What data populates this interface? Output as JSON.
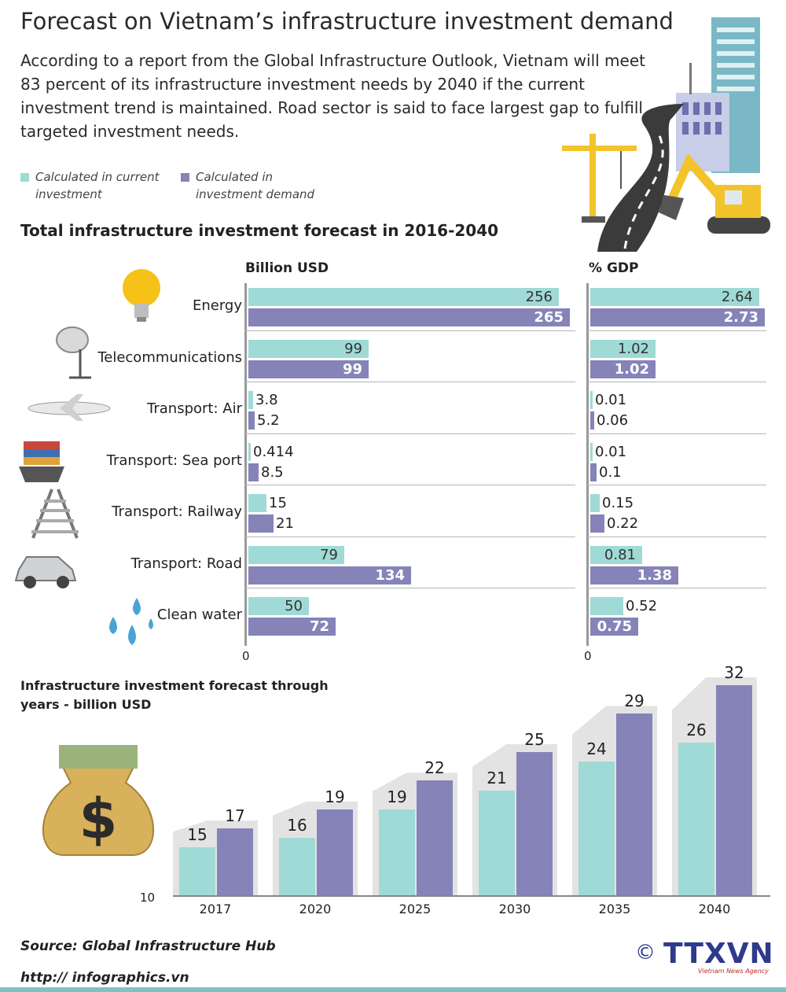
{
  "header": {
    "title": "Forecast on Vietnam’s infrastructure investment demand",
    "intro": "According to a report from the Global Infrastructure Outlook, Vietnam will meet 83 percent of its infrastructure investment needs by 2040 if the current investment trend is maintained. Road sector is said to face largest gap to fulfill targeted investment needs."
  },
  "legend": {
    "current": "Calculated in current investment",
    "demand": "Calculated in investment demand"
  },
  "colors": {
    "current": "#9fdad6",
    "demand": "#8583b8",
    "shadow": "#e3e3e3"
  },
  "section_title": "Total infrastructure investment forecast in 2016-2040",
  "years_title": "Infrastructure investment forecast through years - billion USD",
  "footer": {
    "source": "Source: Global Infrastructure Hub",
    "url": "http:// infographics.vn",
    "logo_c": "©",
    "logo_text": "TTXVN",
    "logo_sub": "Vietnam News Agency"
  },
  "chart_data": [
    {
      "type": "bar",
      "orientation": "horizontal",
      "title": "Billion USD",
      "zero_label": "0",
      "categories": [
        "Energy",
        "Telecommunications",
        "Transport: Air",
        "Transport: Sea port",
        "Transport: Railway",
        "Transport: Road",
        "Clean water"
      ],
      "series": [
        {
          "name": "Calculated in current investment",
          "values": [
            256,
            99,
            3.8,
            0.414,
            15,
            79,
            50
          ],
          "labels": [
            "256",
            "99",
            "3.8",
            "0.414",
            "15",
            "79",
            "50"
          ]
        },
        {
          "name": "Calculated in investment demand",
          "values": [
            265,
            99,
            5.2,
            8.5,
            21,
            134,
            72
          ],
          "labels": [
            "265",
            "99",
            "5.2",
            "8.5",
            "21",
            "134",
            "72"
          ]
        }
      ],
      "xlim": [
        0,
        265
      ]
    },
    {
      "type": "bar",
      "orientation": "horizontal",
      "title": "% GDP",
      "zero_label": "0",
      "categories": [
        "Energy",
        "Telecommunications",
        "Transport: Air",
        "Transport: Sea port",
        "Transport: Railway",
        "Transport: Road",
        "Clean water"
      ],
      "series": [
        {
          "name": "Calculated in current investment",
          "values": [
            2.64,
            1.02,
            0.01,
            0.01,
            0.15,
            0.81,
            0.52
          ],
          "labels": [
            "2.64",
            "1.02",
            "0.01",
            "0.01",
            "0.15",
            "0.81",
            "0.52"
          ]
        },
        {
          "name": "Calculated in investment demand",
          "values": [
            2.73,
            1.02,
            0.06,
            0.1,
            0.22,
            1.38,
            0.75
          ],
          "labels": [
            "2.73",
            "1.02",
            "0.06",
            "0.1",
            "0.22",
            "1.38",
            "0.75"
          ]
        }
      ],
      "xlim": [
        0,
        2.73
      ]
    },
    {
      "type": "bar",
      "orientation": "vertical",
      "title": "Infrastructure investment forecast through years - billion USD",
      "baseline_label": "10",
      "categories": [
        "2017",
        "2020",
        "2025",
        "2030",
        "2035",
        "2040"
      ],
      "series": [
        {
          "name": "Calculated in current investment",
          "values": [
            15,
            16,
            19,
            21,
            24,
            26
          ]
        },
        {
          "name": "Calculated in investment demand",
          "values": [
            17,
            19,
            22,
            25,
            29,
            32
          ]
        }
      ],
      "ylim": [
        10,
        32
      ]
    }
  ]
}
